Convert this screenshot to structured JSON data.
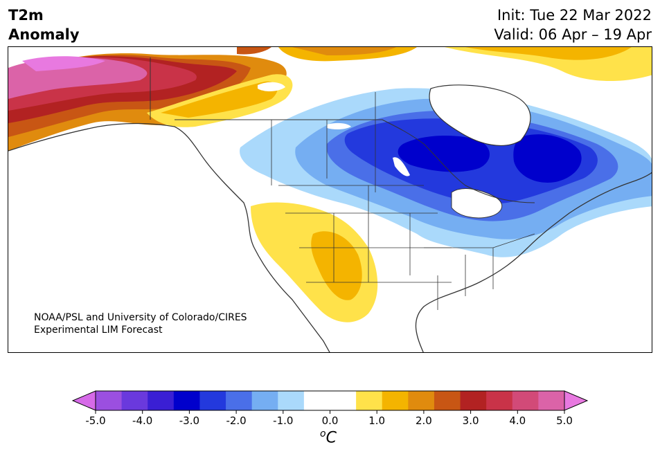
{
  "header": {
    "title_line1": "T2m",
    "title_line2": "Anomaly",
    "init": "Init: Tue 22 Mar 2022",
    "valid": "Valid: 06 Apr – 19 Apr"
  },
  "credit": {
    "line1": "NOAA/PSL and University of Colorado/CIRES",
    "line2": "Experimental LIM Forecast"
  },
  "colorbar": {
    "unit_sup": "o",
    "unit": "C",
    "ticks": [
      "-5.0",
      "-4.0",
      "-3.0",
      "-2.0",
      "-1.0",
      "0.0",
      "1.0",
      "2.0",
      "3.0",
      "4.0",
      "5.0"
    ],
    "colors": [
      "#d66ae8",
      "#9b4fe0",
      "#6a39dd",
      "#3a1fd4",
      "#0000cc",
      "#2339dd",
      "#4a6fe8",
      "#75aef2",
      "#aad9fb",
      "#ffffff",
      "#ffffff",
      "#ffe24a",
      "#f4b400",
      "#e08b0e",
      "#c85614",
      "#b22222",
      "#c93348",
      "#d24a78",
      "#db63a8",
      "#e879e0"
    ]
  },
  "map": {
    "region": "North America",
    "colors": {
      "warm_pink": "#db63a8",
      "warm_red": "#c93348",
      "warm_orange": "#e08b0e",
      "warm_yellow": "#ffe24a",
      "warm_gold": "#f4b400",
      "cold_light": "#aad9fb",
      "cold_mid": "#75aef2",
      "cold_blue": "#4a6fe8",
      "cold_deep": "#2339dd",
      "cold_core": "#0000cc"
    }
  }
}
